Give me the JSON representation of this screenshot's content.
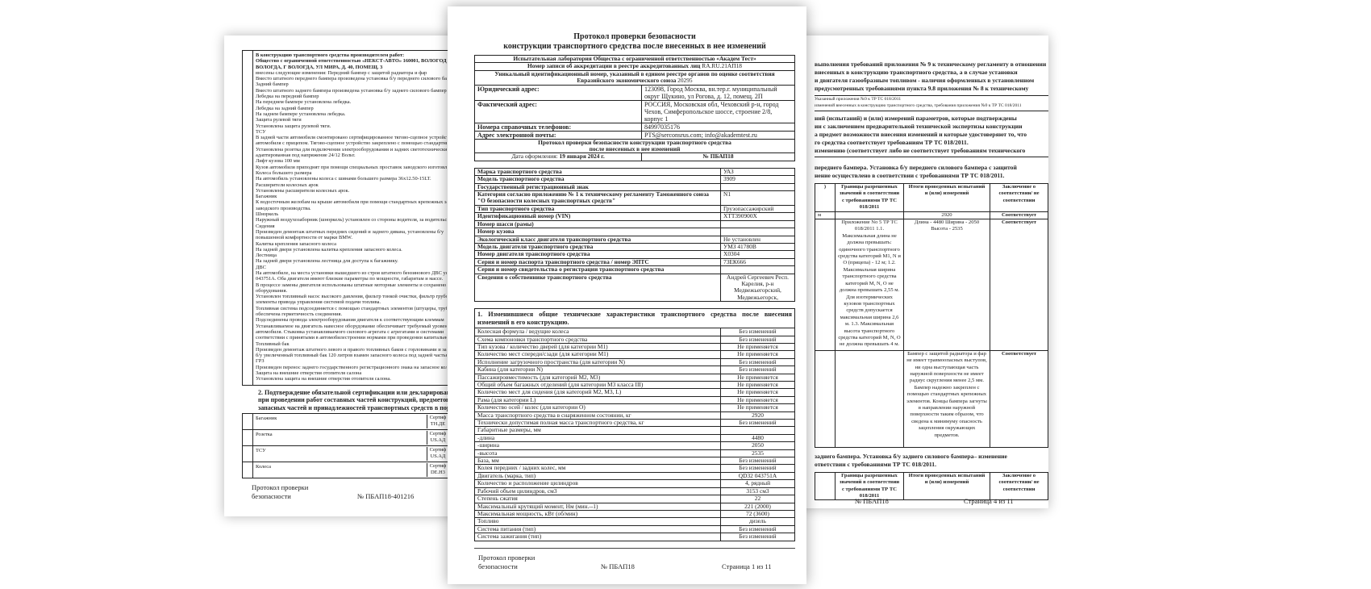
{
  "left": {
    "heading": [
      "В конструкцию транспортного средства производителем работ:",
      "Общество с ограниченной ответственностью «НЕКСТ-АВТО» 160001, ВОЛОГОДСКАЯ ОБЛАСТЬ,",
      "ВОЛОГДА, Г ВОЛОГДА, УЛ МИРА, Д. 40, ПОМЕЩ. 3"
    ],
    "lines": [
      "внесены следующие изменения: Передний бампер с защитой радиатора и фар",
      "Вместо штатного переднего бампера произведена установка б/у переднего силового бампера",
      "Задний бампер",
      "Вместо штатного заднего бампера произведена установка б/у заднего силового бампера",
      "Лебедка на передний бампер",
      "На переднем бампере установлена лебедка.",
      "Лебедка на задний бампер",
      "На заднем бампере установлена лебедка.",
      "Защита рулевой тяги",
      "Установлена защита рулевой тяги.",
      "ТСУ",
      "В задней части автомобиля смонтировано сертифицированное тягово-сцепное устройство",
      "автомобиля с прицепом. Тягово-сцепное устройство закреплено с помощью стандартных",
      "Установлена розетка для подключения электрооборудования и задних светотехнических",
      "адаптированная под напряжение 24/12 Вольт.",
      "Лифт кузова 100 мм",
      "Кузов автомобиля приподнят при помощи специальных проставок заводского изготовления",
      "Колеса большего размера",
      "На автомобиль установлены колеса с шинами большего размера 36x12.50-15LT.",
      "Расширители колесных арок",
      "Установлены расширители колесных арок.",
      "Багажник",
      "К водосточным желобам на крыше автомобиля при помощи стандартных крепежных элементов",
      "заводского производства.",
      "Шноркель",
      "Наружный воздухозаборник (шноркель) установлен со стороны водителя, за водительским",
      "Сидения",
      "Произведен демонтаж штатных передних сидений и заднего дивана, установлены б/у",
      "повышенной комфортности от марки BMW.",
      "Калитка крепления запасного колеса",
      "На задней двери установлена калитка крепления запасного колеса.",
      "Лестница",
      "На задней двери установлена лестница для доступа к багажнику.",
      "ДВС",
      "На автомобиле, на места установки вышедшего из строя штатного бензинового ДВС установлен",
      "043751A. Оба двигателя имеют близкие параметры по мощности, габаритам и массе.",
      "В процессе замены двигателя использованы штатные моторные элементы и сохранено",
      "оборудования.",
      "Установлен топливный насос высокого давления, фильтр тонкой очистки, фильтр грубой",
      "элементы привода управления системой подачи топлива.",
      "Топливная система подсоединяется с помощью стандартных элементов (штуцеры, трубки)",
      "обеспечена герметичность соединения.",
      "Подсоединены провода электрооборудования двигателя к соответствующим клеммам",
      "Устанавливаемое на двигатель навесное оборудование обеспечивает требуемый уровень",
      "автомобиля. Стыковка устанавливаемого силового агрегата с агрегатами и системами",
      "соответствии с принятыми в автомобилестроении нормами при проведении капитального",
      "Топливный бак",
      "Произведен демонтаж штатного левого и правого топливных баков с горловинами и заменой на",
      "б/у увеличенный топливный бак 120 литров взамен запасного колеса под задней частью",
      "ГРЗ",
      "Произведен перенос заднего государственного регистрационного знака на запасное колесо",
      "Защита на внешние отверстия отопителя салона",
      "Установлена защита на внешние отверстия отопителя салона."
    ],
    "section2": [
      "2. Подтверждение обязательной сертификации или декларирования",
      "при проведении работ составных частей конструкций, предметов дополнительного",
      "запасных частей и принадлежностей транспортных средств в порядке, установленном"
    ],
    "cert_rows": [
      {
        "name": "Багажник",
        "cert": [
          "Сертиф",
          "ТН.ДЕ"
        ]
      },
      {
        "name": "Розетка",
        "cert": [
          "Сертиф",
          "US.АД"
        ]
      },
      {
        "name": "ТСУ",
        "cert": [
          "Сертиф",
          "US.АД"
        ]
      },
      {
        "name": "Колеса",
        "cert": [
          "Сертиф",
          "DE.H3"
        ]
      }
    ],
    "footer": {
      "title1": "Протокол проверки",
      "title2": "безопасности",
      "number": "№ ПБАП18-401216"
    }
  },
  "center": {
    "title": [
      "Протокол проверки безопасности",
      "конструкции транспортного средства после внесенных в нее изменений"
    ],
    "lab": "Испытательная лаборатория Общества с ограниченной ответственностью «Академ Тест»",
    "accreditation_label": "Номер записи об аккредитации в реестре аккредитованных лиц ",
    "accreditation": "RA.RU.21АП18",
    "uid_label": "Уникальный идентификационный номер, указанный в едином реестре органов по оценке соответствия Евразийского экономического союза ",
    "uid": "20295",
    "info": [
      {
        "label": "Юридический адрес:",
        "value": "123098, Город Москва, вн.тер.г. муниципальный округ Щукино, ул Рогова, д. 12, помещ. 2П"
      },
      {
        "label": "Фактический адрес:",
        "value": "РОССИЯ, Московская обл, Чеховский р-н, город Чехов, Симферопольское шоссе, строение 2/8, корпус 1"
      },
      {
        "label": "Номера справочных телефонов:",
        "value": "84997035176"
      },
      {
        "label": "Адрес электронной почты:",
        "value": "PTS@serconsrus.com; info@akademtest.ru"
      }
    ],
    "subtitle": [
      "Протокол проверки безопасности конструкции транспортного средства",
      "после внесенных в нее изменений"
    ],
    "date_label": "Дата оформления: ",
    "date": "19 января 2024 г.",
    "number": "№ ПБАП18",
    "vehicle": [
      {
        "label": "Марка транспортного средства",
        "value": "УАЗ"
      },
      {
        "label": "Модель транспортного средства",
        "value": "3909"
      },
      {
        "label": "Государственный регистрационный знак",
        "value": ""
      },
      {
        "label": "Категория согласно приложению № 1 к техническому регламенту Таможенного союза \"О безопасности колесных транспортных средств\"",
        "value": "N1"
      },
      {
        "label": "Тип транспортного средства",
        "value": "Грузопассажирский"
      },
      {
        "label": "Идентификационный номер (VIN)",
        "value": "XTT390900X"
      },
      {
        "label": "Номер шасси (рамы)",
        "value": ""
      },
      {
        "label": "Номер кузова",
        "value": ""
      },
      {
        "label": "Экологический класс двигателя транспортного средства",
        "value": "Не установлен"
      },
      {
        "label": "Модель двигателя транспортного средства",
        "value": "УМЗ 41780В"
      },
      {
        "label": "Номер двигателя транспортного средства",
        "value": "X0304"
      },
      {
        "label": "Серия и номер паспорта транспортного средства / номер ЭПТС",
        "value": "73ЕК666"
      },
      {
        "label": "Серия и номер свидетельства о регистрации транспортного средства",
        "value": ""
      },
      {
        "label": "Сведения о собственнике транспортного средства",
        "value": "Андрей Сергеевич Респ. Карелия, р-н Медвежьегорский, Медвежьегорск,"
      }
    ],
    "section1": "1.   Изменившиеся общие технические характеристики транспортного средства после внесения изменений в его конструкцию.",
    "specs": [
      {
        "label": "Колесная формула / ведущие колеса",
        "value": "Без изменений"
      },
      {
        "label": "Схема компоновки транспортного средства",
        "value": "Без изменений"
      },
      {
        "label": "Тип кузова / количество дверей (для категории М1)",
        "value": "Не применяется"
      },
      {
        "label": "Количество мест спереди/сзади (для категории М1)",
        "value": "Не применяется"
      },
      {
        "label": "Исполнение загрузочного пространства (для категории N)",
        "value": "Без изменений"
      },
      {
        "label": "Кабина (для категории N)",
        "value": "Без изменений"
      },
      {
        "label": "Пассажировместимость (для категорий М2, М3)",
        "value": "Не применяется"
      },
      {
        "label": "Общий объем багажных отделений (для категории М3 класса III)",
        "value": "Не применяется"
      },
      {
        "label": "Количество мест для сидения (для категорий М2, М3, L)",
        "value": "Не применяется"
      },
      {
        "label": "Рама (для категории L)",
        "value": "Не применяется"
      },
      {
        "label": "Количество осей / колес (для категории О)",
        "value": "Не применяется"
      },
      {
        "label": "Масса транспортного средства в снаряженном состоянии, кг",
        "value": "2920"
      },
      {
        "label": "Технически допустимая полная масса транспортного средства, кг",
        "value": "Без изменений"
      },
      {
        "label": "Габаритные размеры, мм",
        "value": ""
      },
      {
        "label": "-длина",
        "value": "4480"
      },
      {
        "label": "-ширина",
        "value": "2050"
      },
      {
        "label": "-высота",
        "value": "2535"
      },
      {
        "label": "База, мм",
        "value": "Без изменений"
      },
      {
        "label": "Колея передних / задних колес, мм",
        "value": "Без изменений"
      },
      {
        "label": "Двигатель (марка, тип)",
        "value": "QD32 043751A"
      },
      {
        "label": "Количество и расположение цилиндров",
        "value": "4, рядный"
      },
      {
        "label": "Рабочий объем цилиндров, см3",
        "value": "3153 см3"
      },
      {
        "label": "Степень сжатия",
        "value": "22"
      },
      {
        "label": "Максимальный крутящий момент, Нм (мин.--1)",
        "value": "221 (2000)"
      },
      {
        "label": "Максимальная мощность, кВт (об/мин)",
        "value": "72 (3600)"
      },
      {
        "label": "Топливо",
        "value": "дизель"
      },
      {
        "label": "Система питания (тип)",
        "value": "Без изменений"
      },
      {
        "label": "Система зажигания (тип)",
        "value": "Без изменений"
      }
    ],
    "footer": {
      "title1": "Протокол проверки",
      "title2": "безопасности",
      "number": "№ ПБАП18",
      "page": "Страница 1 из 11"
    }
  },
  "right": {
    "intro": [
      "выполнения требований приложения № 9 к техническому регламенту в отношении",
      "внесенных в конструкцию транспортного средства, а в случае установки",
      "и двигателя газообразным топливом - наличия оформленных в установленном",
      "предусмотренных требованиями пункта 9.8 приложения № 8 к техническому"
    ],
    "small": [
      "Указанный приложения №9 к ТР ТС 018/2011",
      "изменений внесенных в конструкцию транспортного средства, требования приложения №9 к ТР ТС 018/2011"
    ],
    "results": [
      "ний (испытаний) и (или) измерений параметров, которые подтверждены",
      "ии с заключением предварительной технической экспертизы конструкции",
      "а предмет возможности внесения изменений и которые удостоверяют то, что",
      "го средства соответствует требованиям ТР ТС 018/2011.",
      "изменению (соответствует либо не соответствует требованиям технического"
    ],
    "front_heading": [
      "переднего бампера. Установка б/у переднего силового бампера с защитой",
      "нение осуществлено в соответствии с требованиями ТР ТС 018/2011."
    ],
    "col_headers": [
      "Границы разрешенных значений в соответствии с требованиями ТР ТС 018/2011",
      "Итоги проведенных испытаний и (или) измерений",
      "Заключение о соответствии/ не соответствии"
    ],
    "row1": {
      "result": "2920",
      "verdict": "Соответствует"
    },
    "row2": {
      "limits": "Приложение No 5 ТР ТС 018/2011 1.1. Максимальная длина не должна превышать: одиночного транспортного средства категорий M1, N и O (прицепа) - 12 м; 1.2. Максимальная ширина транспортного средства категорий M, N, O не должна превышать 2,55 м. Для изотермических кузовов транспортных средств допускается максимальная ширина 2,6 м. 1.3. Максимальная высота транспортного средства категорий M, N, O не должна превышать 4 м.",
      "result": "Длина - 4480 Ширина - 2050 Высота - 2535",
      "verdict": "Соответствует"
    },
    "row3": {
      "result": "Бампер с защитой радиатора и фар не имеет травмоопасных выступов, ни одна выступающая часть наружной поверхности не имеет радиус скругления менее 2,5 мм. Бампер надежно закреплен с помощью стандартных крепежных элементов. Концы бампера загнуты в направлении наружной поверхности таким образом, что сведена к минимуму опасность зацепления окружающих предметов.",
      "verdict": "Соответствует"
    },
    "rear_heading": [
      "заднего бампера. Установка б/у заднего силового бампера– изменение",
      "ответствии с требованиями ТР ТС 018/2011."
    ],
    "footer": {
      "number": "№ ПБАП18",
      "page": "Страница 4 из 11"
    }
  }
}
